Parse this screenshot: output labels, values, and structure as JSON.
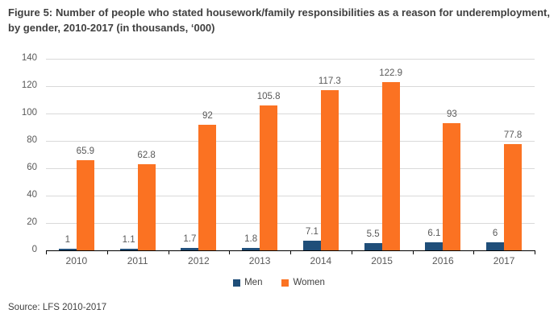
{
  "title": "Figure 5: Number of people who stated housework/family responsibilities as a reason for underemployment, by gender, 2010-2017 (in thousands, ‘000)",
  "source": "Source: LFS 2010-2017",
  "colors": {
    "men": "#1F4E79",
    "women": "#FB7222",
    "gridline": "#D9D9D9",
    "axis_line": "#000000",
    "tick_text": "#595959",
    "title_text": "#404040"
  },
  "legend": {
    "items": [
      "Men",
      "Women"
    ]
  },
  "chart_data": {
    "type": "bar",
    "title": "Figure 5: Number of people who stated housework/family responsibilities as a reason for underemployment, by gender, 2010-2017 (in thousands, ‘000)",
    "xlabel": "",
    "ylabel": "",
    "categories": [
      "2010",
      "2011",
      "2012",
      "2013",
      "2014",
      "2015",
      "2016",
      "2017"
    ],
    "series": [
      {
        "name": "Men",
        "color": "#1F4E79",
        "values": [
          1,
          1.1,
          1.7,
          1.8,
          7.1,
          5.5,
          6.1,
          6
        ]
      },
      {
        "name": "Women",
        "color": "#FB7222",
        "values": [
          65.9,
          62.8,
          92,
          105.8,
          117.3,
          122.9,
          93,
          77.8
        ]
      }
    ],
    "y_ticks": [
      0,
      20,
      40,
      60,
      80,
      100,
      120,
      140
    ],
    "ylim": [
      0,
      140
    ],
    "grid": true,
    "legend_position": "bottom",
    "data_labels": true
  }
}
